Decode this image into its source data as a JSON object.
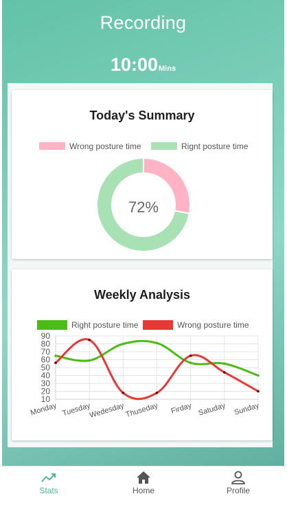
{
  "header": {
    "title": "Recording",
    "timer_value": "10:00",
    "timer_unit": "Mins"
  },
  "summary": {
    "title": "Today's Summary",
    "center_label": "72%",
    "legend": [
      {
        "label": "Wrong posture time",
        "color": "#ffb3c4"
      },
      {
        "label": "Rignt posture time",
        "color": "#a8e2b4"
      }
    ]
  },
  "weekly": {
    "title": "Weekly Analysis",
    "legend": [
      {
        "label": "Right posture time",
        "color": "#4cbb17"
      },
      {
        "label": "Wrong posture time",
        "color": "#e53935"
      }
    ]
  },
  "chart_data": [
    {
      "type": "pie",
      "donut": true,
      "categories": [
        "Wrong posture time",
        "Rignt posture time"
      ],
      "values": [
        28,
        72
      ],
      "colors": [
        "#ffb3c4",
        "#a8e2b4"
      ],
      "center_label": "72%"
    },
    {
      "type": "line",
      "title": "Weekly Analysis",
      "categories": [
        "Monday",
        "Tuesday",
        "Wedesday",
        "Thuseday",
        "Firday",
        "Satuday",
        "Sunday"
      ],
      "yticks": [
        10,
        20,
        30,
        40,
        50,
        60,
        70,
        80,
        90
      ],
      "ylim": [
        10,
        90
      ],
      "grid": true,
      "series": [
        {
          "name": "Right posture time",
          "color": "#4cbb17",
          "values": [
            65,
            59,
            80,
            81,
            56,
            55,
            40
          ]
        },
        {
          "name": "Wrong posture time",
          "color": "#e53935",
          "values": [
            56,
            85,
            18,
            18,
            65,
            44,
            20
          ]
        }
      ]
    }
  ],
  "nav": {
    "items": [
      {
        "label": "Stats",
        "icon": "trending-up-icon",
        "active": true
      },
      {
        "label": "Home",
        "icon": "home-icon",
        "active": false
      },
      {
        "label": "Profile",
        "icon": "person-icon",
        "active": false
      }
    ],
    "active_color": "#4fb597"
  }
}
